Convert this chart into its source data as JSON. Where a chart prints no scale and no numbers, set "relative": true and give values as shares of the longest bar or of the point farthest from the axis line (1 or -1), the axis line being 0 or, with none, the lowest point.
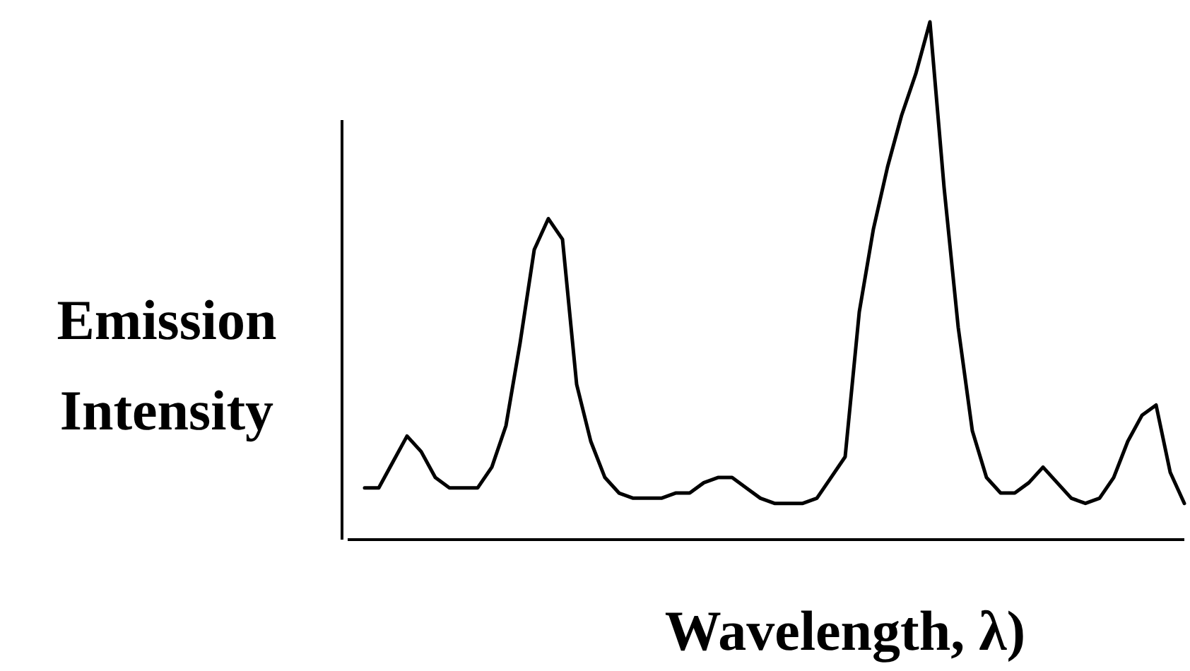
{
  "chart_data": {
    "type": "line",
    "relative": true,
    "xlabel": "Wavelength, λ)",
    "ylabel": "Emission Intensity",
    "categories": [
      null,
      null,
      null,
      null,
      null,
      null,
      null,
      null,
      null,
      null,
      null,
      null,
      null,
      null,
      null,
      null,
      null,
      null,
      null,
      null,
      null,
      null,
      null,
      null,
      null,
      null,
      null,
      null,
      null,
      null,
      null,
      null,
      null,
      null,
      null,
      null,
      null,
      null,
      null,
      null,
      null,
      null,
      null,
      null,
      null,
      null,
      null,
      null,
      null,
      null,
      null,
      null,
      null,
      null,
      null,
      null,
      null,
      null,
      null
    ],
    "series": [
      {
        "color": "#000000",
        "values": [
          0.1,
          0.1,
          0.15,
          0.2,
          0.17,
          0.12,
          0.1,
          0.1,
          0.1,
          0.14,
          0.22,
          0.38,
          0.56,
          0.62,
          0.58,
          0.3,
          0.19,
          0.12,
          0.09,
          0.08,
          0.08,
          0.08,
          0.09,
          0.09,
          0.11,
          0.12,
          0.12,
          0.1,
          0.08,
          0.07,
          0.07,
          0.07,
          0.08,
          0.12,
          0.16,
          0.44,
          0.6,
          0.72,
          0.82,
          0.9,
          1,
          0.68,
          0.41,
          0.21,
          0.12,
          0.09,
          0.09,
          0.11,
          0.14,
          0.11,
          0.08,
          0.07,
          0.08,
          0.12,
          0.19,
          0.24,
          0.26,
          0.13,
          0.07
        ]
      }
    ],
    "marker": "none",
    "line_style": "solid"
  }
}
